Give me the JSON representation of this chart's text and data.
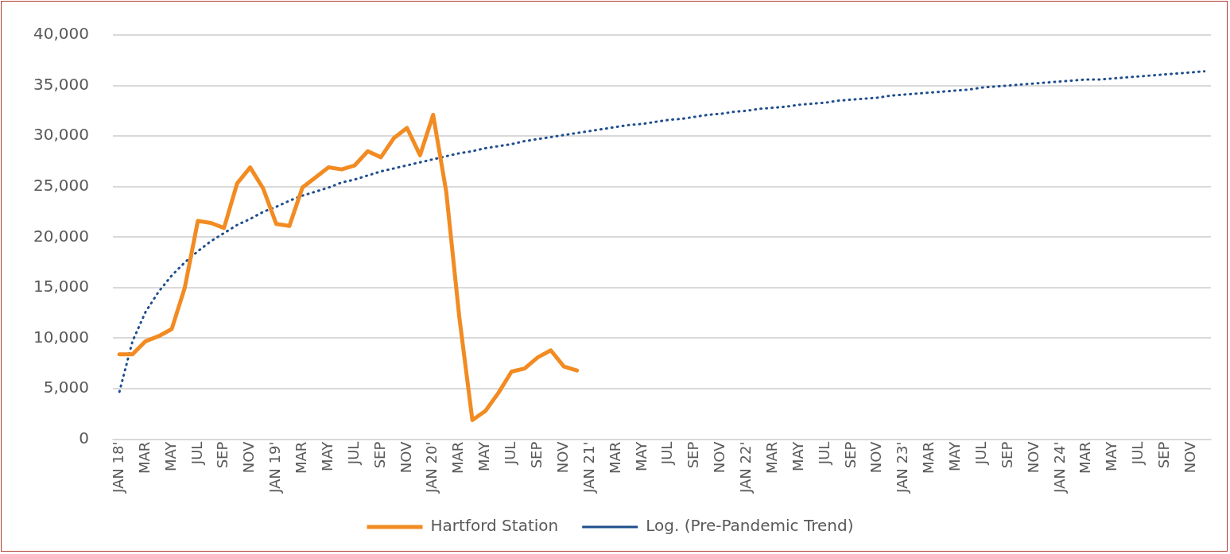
{
  "chart_data": {
    "type": "line",
    "categories": [
      "JAN 18'",
      null,
      "MAR",
      null,
      "MAY",
      null,
      "JUL",
      null,
      "SEP",
      null,
      "NOV",
      null,
      "JAN 19'",
      null,
      "MAR",
      null,
      "MAY",
      null,
      "JUL",
      null,
      "SEP",
      null,
      "NOV",
      null,
      "JAN 20'",
      null,
      "MAR",
      null,
      "MAY",
      null,
      "JUL",
      null,
      "SEP",
      null,
      "NOV",
      null,
      "JAN 21'",
      null,
      "MAR",
      null,
      "MAY",
      null,
      "JUL",
      null,
      "SEP",
      null,
      "NOV",
      null,
      "JAN 22'",
      null,
      "MAR",
      null,
      "MAY",
      null,
      "JUL",
      null,
      "SEP",
      null,
      "NOV",
      null,
      "JAN 23'",
      null,
      "MAR",
      null,
      "MAY",
      null,
      "JUL",
      null,
      "SEP",
      null,
      "NOV",
      null,
      "JAN 24'",
      null,
      "MAR",
      null,
      "MAY",
      null,
      "JUL",
      null,
      "SEP",
      null,
      "NOV",
      null
    ],
    "series": [
      {
        "name": "Hartford Station",
        "color": "#f28b22",
        "line_style": "solid",
        "values": [
          8400,
          8400,
          9700,
          10200,
          10900,
          15000,
          21600,
          21400,
          20900,
          25300,
          26900,
          24800,
          21300,
          21100,
          24900,
          25900,
          26900,
          26700,
          27100,
          28500,
          27900,
          29800,
          30800,
          28100,
          32100,
          24500,
          12100,
          1900,
          2800,
          4600,
          6700,
          7000,
          8100,
          8800,
          7200,
          6800,
          null,
          null,
          null,
          null,
          null,
          null,
          null,
          null,
          null,
          null,
          null,
          null,
          null,
          null,
          null,
          null,
          null,
          null,
          null,
          null,
          null,
          null,
          null,
          null,
          null,
          null,
          null,
          null,
          null,
          null,
          null,
          null,
          null,
          null,
          null,
          null,
          null,
          null,
          null,
          null,
          null,
          null,
          null,
          null,
          null,
          null,
          null,
          null
        ]
      },
      {
        "name": "Log. (Pre-Pandemic Trend)",
        "color": "#1f4e8c",
        "line_style": "dotted",
        "values": [
          4700,
          9700,
          12600,
          14600,
          16200,
          17500,
          18600,
          19600,
          20400,
          21200,
          21800,
          22500,
          23000,
          23600,
          24100,
          24500,
          24900,
          25400,
          25700,
          26100,
          26500,
          26800,
          27100,
          27400,
          27700,
          28000,
          28300,
          28500,
          28800,
          29000,
          29200,
          29500,
          29700,
          29900,
          30100,
          30300,
          30500,
          30700,
          30900,
          31100,
          31200,
          31400,
          31600,
          31700,
          31900,
          32100,
          32200,
          32400,
          32500,
          32700,
          32800,
          32900,
          33100,
          33200,
          33300,
          33500,
          33600,
          33700,
          33800,
          34000,
          34100,
          34200,
          34300,
          34400,
          34500,
          34600,
          34800,
          34900,
          35000,
          35100,
          35200,
          35300,
          35400,
          35500,
          35600,
          35600,
          35700,
          35800,
          35900,
          36000,
          36100,
          36200,
          36300,
          36400
        ]
      }
    ],
    "ylim": [
      0,
      40000
    ],
    "yticks": [
      {
        "value": 0,
        "label": "0"
      },
      {
        "value": 5000,
        "label": "5,000"
      },
      {
        "value": 10000,
        "label": "10,000"
      },
      {
        "value": 15000,
        "label": "15,000"
      },
      {
        "value": 20000,
        "label": "20,000"
      },
      {
        "value": 25000,
        "label": "25,000"
      },
      {
        "value": 30000,
        "label": "30,000"
      },
      {
        "value": 35000,
        "label": "35,000"
      },
      {
        "value": 40000,
        "label": "40,000"
      }
    ],
    "grid": "y",
    "legend": "bottom",
    "marker": "none"
  }
}
